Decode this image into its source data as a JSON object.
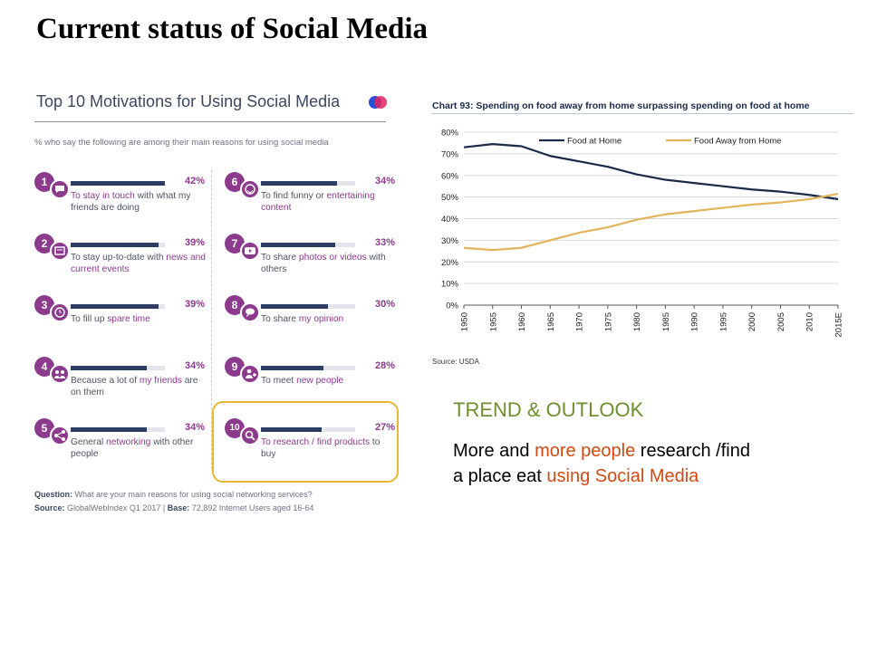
{
  "slide": {
    "title": "Current status of Social Media"
  },
  "infographic": {
    "title": "Top 10 Motivations for Using Social Media",
    "subtitle": "% who say the following are among their main reasons for using social media",
    "items": [
      {
        "rank": "1",
        "icon": "chat-icon",
        "value": 42,
        "pct": "42%",
        "text_parts": [
          {
            "t": "To stay in touch",
            "h": true
          },
          {
            "t": " with what my friends are doing",
            "h": false
          }
        ]
      },
      {
        "rank": "2",
        "icon": "newspaper-icon",
        "value": 39,
        "pct": "39%",
        "text_parts": [
          {
            "t": "To stay up-to-date with ",
            "h": false
          },
          {
            "t": "news and current events",
            "h": true
          }
        ]
      },
      {
        "rank": "3",
        "icon": "clock-icon",
        "value": 39,
        "pct": "39%",
        "text_parts": [
          {
            "t": "To fill up ",
            "h": false
          },
          {
            "t": "spare time",
            "h": true
          }
        ]
      },
      {
        "rank": "4",
        "icon": "group-icon",
        "value": 34,
        "pct": "34%",
        "text_parts": [
          {
            "t": "Because a lot of ",
            "h": false
          },
          {
            "t": "my friends",
            "h": true
          },
          {
            "t": " are on them",
            "h": false
          }
        ]
      },
      {
        "rank": "5",
        "icon": "share-icon",
        "value": 34,
        "pct": "34%",
        "text_parts": [
          {
            "t": "General ",
            "h": false
          },
          {
            "t": "networking",
            "h": true
          },
          {
            "t": " with other people",
            "h": false
          }
        ]
      },
      {
        "rank": "6",
        "icon": "smiley-icon",
        "value": 34,
        "pct": "34%",
        "text_parts": [
          {
            "t": "To find funny or ",
            "h": false
          },
          {
            "t": "entertaining content",
            "h": true
          }
        ]
      },
      {
        "rank": "7",
        "icon": "play-icon",
        "value": 33,
        "pct": "33%",
        "text_parts": [
          {
            "t": "To share ",
            "h": false
          },
          {
            "t": "photos or videos",
            "h": true
          },
          {
            "t": " with others",
            "h": false
          }
        ]
      },
      {
        "rank": "8",
        "icon": "speech-icon",
        "value": 30,
        "pct": "30%",
        "text_parts": [
          {
            "t": "To share ",
            "h": false
          },
          {
            "t": "my opinion",
            "h": true
          }
        ]
      },
      {
        "rank": "9",
        "icon": "add-person-icon",
        "value": 28,
        "pct": "28%",
        "text_parts": [
          {
            "t": "To meet ",
            "h": false
          },
          {
            "t": "new people",
            "h": true
          }
        ]
      },
      {
        "rank": "10",
        "icon": "search-icon",
        "value": 27,
        "pct": "27%",
        "text_parts": [
          {
            "t": "To research / find products",
            "h": true
          },
          {
            "t": " to buy",
            "h": false
          }
        ]
      }
    ],
    "question_label": "Question:",
    "question": " What are your main reasons for using social networking services?",
    "source_label": "Source:",
    "source": " GlobalWebIndex Q1 2017 | ",
    "base_label": "Base:",
    "base": " 72,892 Internet Users aged 16-64",
    "accent": "#8c3a8c",
    "bar_color": "#2e3d63"
  },
  "chart_data": {
    "type": "line",
    "title": "Chart 93: Spending on food away from home surpassing spending on food at home",
    "x": [
      1950,
      1955,
      1960,
      1965,
      1970,
      1975,
      1980,
      1985,
      1990,
      1995,
      2000,
      2005,
      2010,
      2015
    ],
    "x_tick_labels": [
      "1950",
      "1955",
      "1960",
      "1965",
      "1970",
      "1975",
      "1980",
      "1985",
      "1990",
      "1995",
      "2000",
      "2005",
      "2010",
      "2015E"
    ],
    "series": [
      {
        "name": "Food at Home",
        "color": "#1a2a48",
        "values": [
          73,
          74.5,
          73.5,
          69,
          66.5,
          64,
          60.5,
          58,
          56.5,
          55,
          53.5,
          52.5,
          51,
          49
        ]
      },
      {
        "name": "Food Away from Home",
        "color": "#e3b45a",
        "values": [
          26.5,
          25.5,
          26.5,
          30,
          33.5,
          36,
          39.5,
          42,
          43.5,
          45,
          46.5,
          47.5,
          49,
          51.5
        ]
      }
    ],
    "y_tick_labels": [
      "0%",
      "10%",
      "20%",
      "30%",
      "40%",
      "50%",
      "60%",
      "70%",
      "80%"
    ],
    "ylim": [
      0,
      80
    ],
    "xlim": [
      1950,
      2015
    ],
    "grid": "horizontal",
    "legend_position": "top",
    "source": "Source: USDA"
  },
  "trend": {
    "title": "TREND & OUTLOOK",
    "line1": [
      {
        "t": "More and ",
        "red": false
      },
      {
        "t": "more people",
        "red": true
      },
      {
        "t": " research /find",
        "red": false
      }
    ],
    "line2": [
      {
        "t": "a place eat ",
        "red": false
      },
      {
        "t": "using Social Media",
        "red": true
      }
    ]
  }
}
